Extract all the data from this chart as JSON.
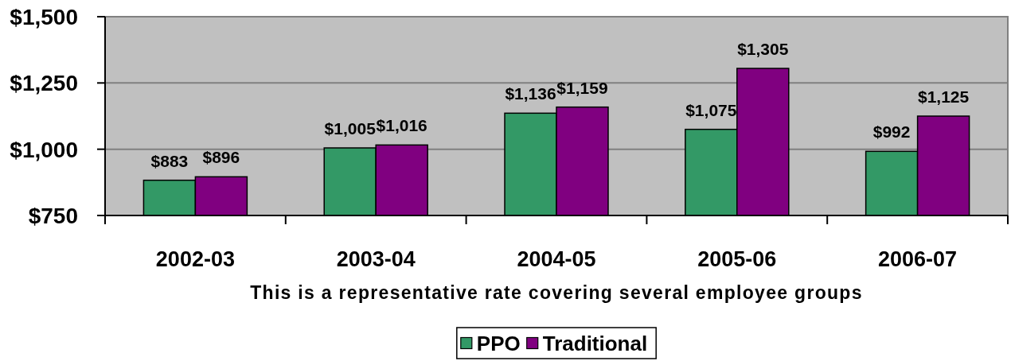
{
  "chart_data": {
    "type": "bar",
    "categories": [
      "2002-03",
      "2003-04",
      "2004-05",
      "2005-06",
      "2006-07"
    ],
    "series": [
      {
        "name": "PPO",
        "color": "#339966",
        "values": [
          883,
          1005,
          1136,
          1075,
          992
        ],
        "value_labels": [
          "$883",
          "$1,005",
          "$1,136",
          "$1,075",
          "$992"
        ]
      },
      {
        "name": "Traditional",
        "color": "#800080",
        "values": [
          896,
          1016,
          1159,
          1305,
          1125
        ],
        "value_labels": [
          "$896",
          "$1,016",
          "$1,159",
          "$1,305",
          "$1,125"
        ]
      }
    ],
    "ylim": [
      750,
      1500
    ],
    "yticks": [
      {
        "value": 750,
        "label": "$750"
      },
      {
        "value": 1000,
        "label": "$1,000"
      },
      {
        "value": 1250,
        "label": "$1,250"
      },
      {
        "value": 1500,
        "label": "$1,500"
      }
    ],
    "xlabel": "This is a representative rate covering several employee groups",
    "grid": "y",
    "legend": "bottom"
  }
}
